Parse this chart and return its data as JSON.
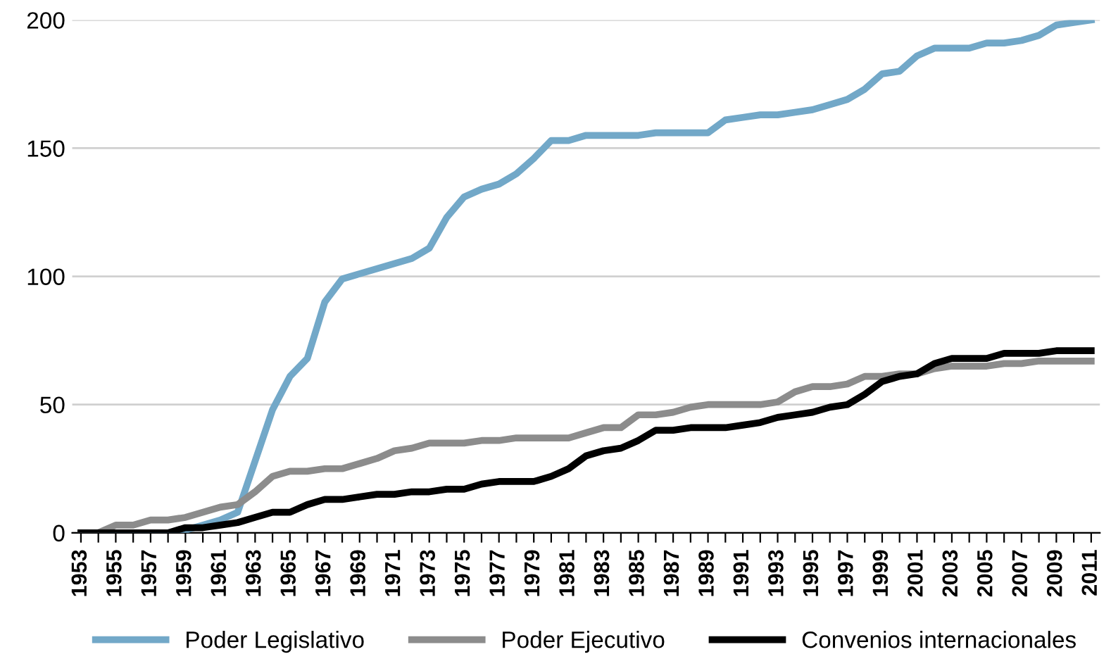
{
  "chart_data": {
    "type": "line",
    "categories": [
      "1953",
      null,
      "1955",
      null,
      "1957",
      null,
      "1959",
      null,
      "1961",
      null,
      "1963",
      null,
      "1965",
      null,
      "1967",
      null,
      "1969",
      null,
      "1971",
      null,
      "1973",
      null,
      "1975",
      null,
      "1977",
      null,
      "1979",
      null,
      "1981",
      null,
      "1983",
      null,
      "1985",
      null,
      "1987",
      null,
      "1989",
      null,
      "1991",
      null,
      "1993",
      null,
      "1995",
      null,
      "1997",
      null,
      "1999",
      null,
      "2001",
      null,
      "2003",
      null,
      "2005",
      null,
      "2007",
      null,
      "2009",
      null,
      "2011"
    ],
    "series": [
      {
        "name": "Poder Legislativo",
        "color": "#72a8c8",
        "values": [
          0,
          0,
          0,
          0,
          0,
          0,
          1,
          3,
          5,
          8,
          28,
          48,
          61,
          68,
          90,
          99,
          101,
          103,
          105,
          107,
          111,
          123,
          131,
          134,
          136,
          140,
          146,
          153,
          153,
          155,
          155,
          155,
          155,
          156,
          156,
          156,
          156,
          161,
          162,
          163,
          163,
          164,
          165,
          167,
          169,
          173,
          179,
          180,
          186,
          189,
          189,
          189,
          191,
          191,
          192,
          194,
          198,
          199,
          200
        ]
      },
      {
        "name": "Poder Ejecutivo",
        "color": "#8c8c8c",
        "values": [
          0,
          0,
          3,
          3,
          5,
          5,
          6,
          8,
          10,
          11,
          16,
          22,
          24,
          24,
          25,
          25,
          27,
          29,
          32,
          33,
          35,
          35,
          35,
          36,
          36,
          37,
          37,
          37,
          37,
          39,
          41,
          41,
          46,
          46,
          47,
          49,
          50,
          50,
          50,
          50,
          51,
          55,
          57,
          57,
          58,
          61,
          61,
          62,
          62,
          64,
          65,
          65,
          65,
          66,
          66,
          67,
          67,
          67,
          67
        ]
      },
      {
        "name": "Convenios internacionales",
        "color": "#000000",
        "values": [
          0,
          0,
          0,
          0,
          0,
          0,
          2,
          2,
          3,
          4,
          6,
          8,
          8,
          11,
          13,
          13,
          14,
          15,
          15,
          16,
          16,
          17,
          17,
          19,
          20,
          20,
          20,
          22,
          25,
          30,
          32,
          33,
          36,
          40,
          40,
          41,
          41,
          41,
          42,
          43,
          45,
          46,
          47,
          49,
          50,
          54,
          59,
          61,
          62,
          66,
          68,
          68,
          68,
          70,
          70,
          70,
          71,
          71,
          71
        ]
      }
    ],
    "ylim": [
      0,
      200
    ],
    "yticks": [
      0,
      50,
      100,
      150,
      200
    ],
    "grid": "y",
    "legend": "bottom",
    "line_style": "solid",
    "marker": "none"
  }
}
